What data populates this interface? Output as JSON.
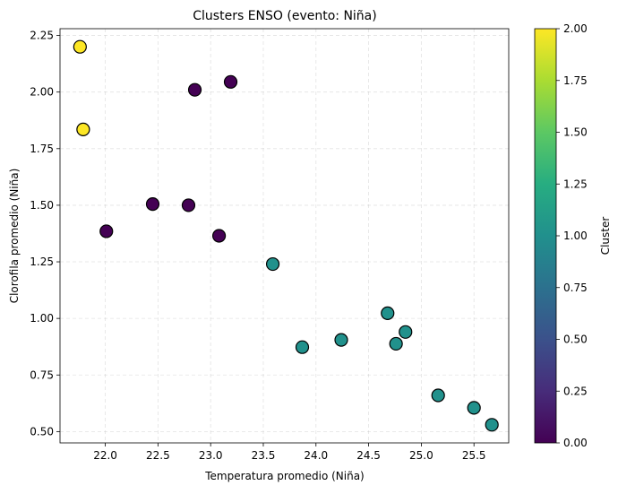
{
  "chart_data": {
    "type": "scatter",
    "title": "Clusters ENSO (evento: Niña)",
    "xlabel": "Temperatura promedio (Niña)",
    "ylabel": "Clorofila promedio (Niña)",
    "xlim": [
      21.57,
      25.83
    ],
    "ylim": [
      0.45,
      2.28
    ],
    "xticks": [
      "22.0",
      "22.5",
      "23.0",
      "23.5",
      "24.0",
      "24.5",
      "25.0",
      "25.5"
    ],
    "yticks": [
      "0.50",
      "0.75",
      "1.00",
      "1.25",
      "1.50",
      "1.75",
      "2.00",
      "2.25"
    ],
    "grid": true,
    "points": [
      {
        "x": 21.76,
        "y": 2.2,
        "cluster": 2
      },
      {
        "x": 21.79,
        "y": 1.835,
        "cluster": 2
      },
      {
        "x": 22.85,
        "y": 2.01,
        "cluster": 0
      },
      {
        "x": 23.19,
        "y": 2.045,
        "cluster": 0
      },
      {
        "x": 22.45,
        "y": 1.505,
        "cluster": 0
      },
      {
        "x": 22.79,
        "y": 1.5,
        "cluster": 0
      },
      {
        "x": 22.01,
        "y": 1.385,
        "cluster": 0
      },
      {
        "x": 23.08,
        "y": 1.365,
        "cluster": 0
      },
      {
        "x": 23.59,
        "y": 1.24,
        "cluster": 1
      },
      {
        "x": 23.87,
        "y": 0.873,
        "cluster": 1
      },
      {
        "x": 24.24,
        "y": 0.905,
        "cluster": 1
      },
      {
        "x": 24.68,
        "y": 1.023,
        "cluster": 1
      },
      {
        "x": 24.76,
        "y": 0.888,
        "cluster": 1
      },
      {
        "x": 24.85,
        "y": 0.94,
        "cluster": 1
      },
      {
        "x": 25.16,
        "y": 0.66,
        "cluster": 1
      },
      {
        "x": 25.5,
        "y": 0.605,
        "cluster": 1
      },
      {
        "x": 25.67,
        "y": 0.53,
        "cluster": 1
      }
    ],
    "colorbar": {
      "label": "Cluster",
      "range": [
        0,
        2
      ],
      "ticks": [
        "0.00",
        "0.25",
        "0.50",
        "0.75",
        "1.00",
        "1.25",
        "1.50",
        "1.75",
        "2.00"
      ],
      "colormap": "viridis"
    },
    "colors": {
      "cluster_0": "#440154",
      "cluster_1": "#21918c",
      "cluster_2": "#fde725"
    }
  }
}
